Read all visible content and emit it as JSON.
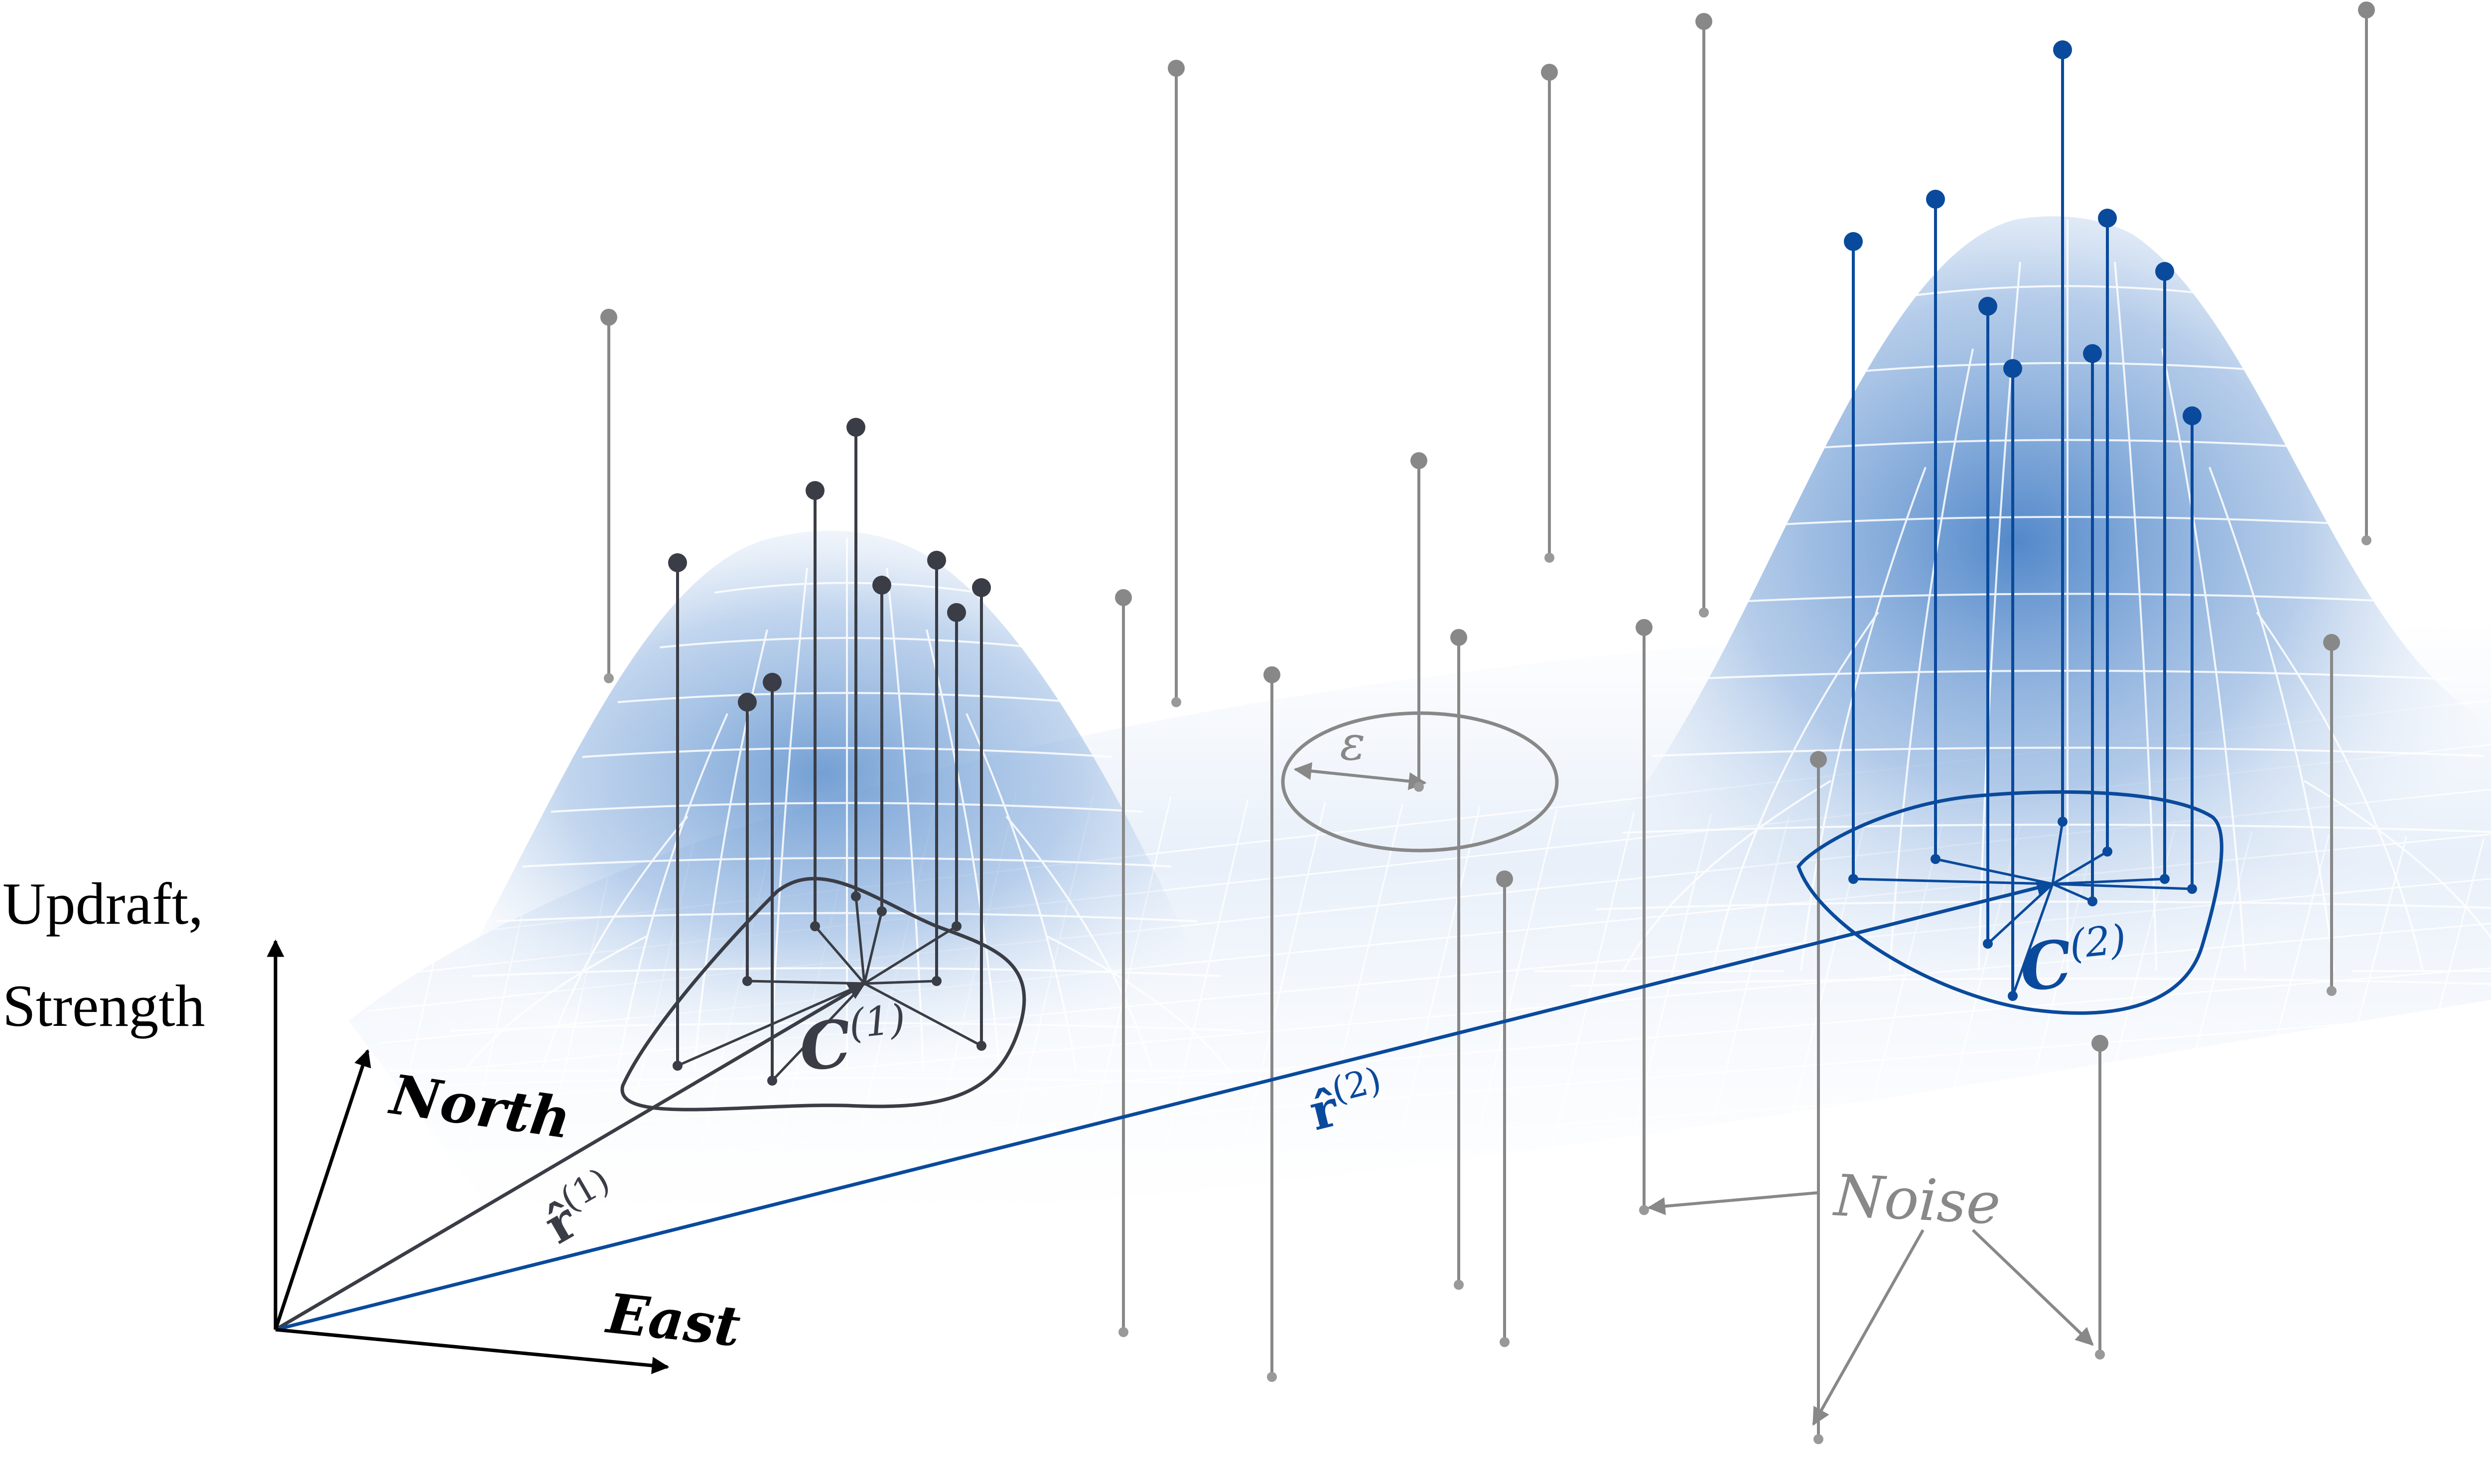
{
  "axes": {
    "vertical_label_line1": "Updraft,",
    "vertical_label_line2": "Strength",
    "north_label": "North",
    "east_label": "East"
  },
  "cluster1": {
    "label_base": "C",
    "label_sup": "(1)",
    "vector_base": "r̂",
    "vector_sup": "(1)"
  },
  "cluster2": {
    "label_base": "C",
    "label_sup": "(2)",
    "vector_base": "r̂",
    "vector_sup": "(2)"
  },
  "epsilon_label": "ε",
  "noise_label": "Noise",
  "colors": {
    "cluster1": "#3a3d45",
    "cluster2": "#0a4a9c",
    "noise": "#888888",
    "surface": "#5b8fcc",
    "axis": "#000000"
  }
}
